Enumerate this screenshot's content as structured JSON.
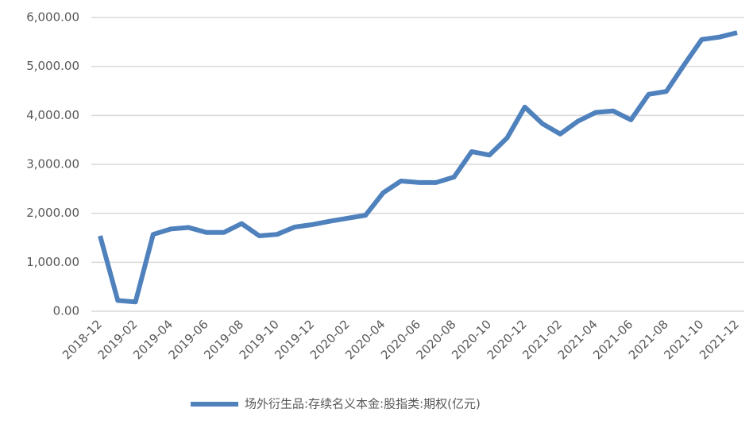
{
  "chart_data": {
    "type": "line",
    "categories": [
      "2018-12",
      null,
      "2019-02",
      null,
      "2019-04",
      null,
      "2019-06",
      null,
      "2019-08",
      null,
      "2019-10",
      null,
      "2019-12",
      null,
      "2020-02",
      null,
      "2020-04",
      null,
      "2020-06",
      null,
      "2020-08",
      null,
      "2020-10",
      null,
      "2020-12",
      null,
      "2021-02",
      null,
      "2021-04",
      null,
      "2021-06",
      null,
      "2021-08",
      null,
      "2021-10",
      null,
      "2021-12"
    ],
    "series": [
      {
        "name": "场外衍生品:存续名义本金:股指类:期权(亿元)",
        "color": "#4f81bd",
        "values": [
          1540,
          220,
          190,
          1570,
          1680,
          1710,
          1610,
          1610,
          1790,
          1540,
          1570,
          1720,
          1770,
          1840,
          1900,
          1960,
          2420,
          2660,
          2630,
          2630,
          2740,
          3260,
          3190,
          3540,
          4170,
          3830,
          3620,
          3880,
          4060,
          4090,
          3910,
          4430,
          4490,
          5030,
          5550,
          5600,
          5690
        ]
      }
    ],
    "ylim": [
      0,
      6000
    ],
    "yticks": [
      {
        "value": 0,
        "label": "0.00"
      },
      {
        "value": 1000,
        "label": "1,000.00"
      },
      {
        "value": 2000,
        "label": "2,000.00"
      },
      {
        "value": 3000,
        "label": "3,000.00"
      },
      {
        "value": 4000,
        "label": "4,000.00"
      },
      {
        "value": 5000,
        "label": "5,000.00"
      },
      {
        "value": 6000,
        "label": "6,000.00"
      }
    ],
    "grid": true,
    "legend": "bottom"
  }
}
